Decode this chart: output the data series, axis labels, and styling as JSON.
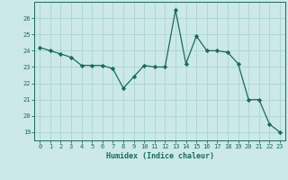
{
  "x": [
    0,
    1,
    2,
    3,
    4,
    5,
    6,
    7,
    8,
    9,
    10,
    11,
    12,
    13,
    14,
    15,
    16,
    17,
    18,
    19,
    20,
    21,
    22,
    23
  ],
  "y": [
    24.2,
    24.0,
    23.8,
    23.6,
    23.1,
    23.1,
    23.1,
    22.9,
    21.7,
    22.4,
    23.1,
    23.0,
    23.0,
    26.5,
    23.2,
    24.9,
    24.0,
    24.0,
    23.9,
    23.2,
    21.0,
    21.0,
    19.5,
    19.0
  ],
  "xlabel": "Humidex (Indice chaleur)",
  "ylim": [
    18.5,
    27.0
  ],
  "xlim": [
    -0.5,
    23.5
  ],
  "yticks": [
    19,
    20,
    21,
    22,
    23,
    24,
    25,
    26
  ],
  "xticks": [
    0,
    1,
    2,
    3,
    4,
    5,
    6,
    7,
    8,
    9,
    10,
    11,
    12,
    13,
    14,
    15,
    16,
    17,
    18,
    19,
    20,
    21,
    22,
    23
  ],
  "line_color": "#1a6b5a",
  "marker_color": "#1a6b5a",
  "bg_color": "#cce8e8",
  "grid_color": "#aad4d4",
  "xlabel_color": "#1a6b5a",
  "tick_color": "#1a6b5a",
  "axis_color": "#1a6b5a"
}
